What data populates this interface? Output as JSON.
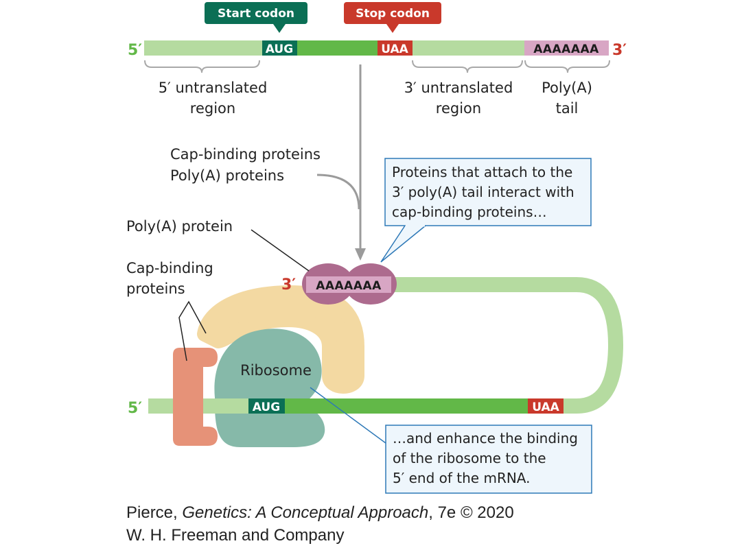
{
  "linear_mrna": {
    "five_prime": "5′",
    "three_prime": "3′",
    "start_codon_label": "Start codon",
    "stop_codon_label": "Stop codon",
    "start_codon": "AUG",
    "stop_codon": "UAA",
    "poly_a": "AAAAAAA",
    "utr5_line1": "5′ untranslated",
    "utr5_line2": "region",
    "utr3_line1": "3′ untranslated",
    "utr3_line2": "region",
    "tail_line1": "Poly(A)",
    "tail_line2": "tail"
  },
  "labels": {
    "cap_binding_proteins": "Cap-binding proteins",
    "poly_a_proteins": "Poly(A) proteins",
    "poly_a_protein": "Poly(A) protein",
    "cap_binding_line1": "Cap-binding",
    "cap_binding_line2": "proteins",
    "ribosome": "Ribosome"
  },
  "circular_mrna": {
    "five_prime": "5′",
    "three_prime": "3′",
    "start_codon": "AUG",
    "stop_codon": "UAA",
    "poly_a": "AAAAAAA"
  },
  "callouts": {
    "top": [
      "Proteins that attach to the",
      "3′ poly(A) tail interact with",
      "cap-binding proteins…"
    ],
    "bottom": [
      "…and enhance the binding",
      "of the ribosome to the",
      "5′ end of the mRNA."
    ]
  },
  "credit": {
    "author": "Pierce, ",
    "title": "Genetics: A Conceptual Approach",
    "edition": ", 7e © 2020",
    "publisher": "W. H. Freeman and Company"
  },
  "colors": {
    "utr_green": "#b5dba0",
    "coding_green": "#62b848",
    "start_teal": "#0b6f55",
    "stop_red": "#c9392b",
    "poly_a_pink": "#d8a6c4",
    "poly_a_protein": "#ad6b8e",
    "cap_tan": "#f3d9a2",
    "cap_salmon": "#e69278",
    "ribosome": "#86b9a9",
    "callout_bg": "#eef6fc",
    "callout_border": "#2d78b7",
    "five_prime_green": "#62b848",
    "three_prime_red": "#c9392b"
  }
}
